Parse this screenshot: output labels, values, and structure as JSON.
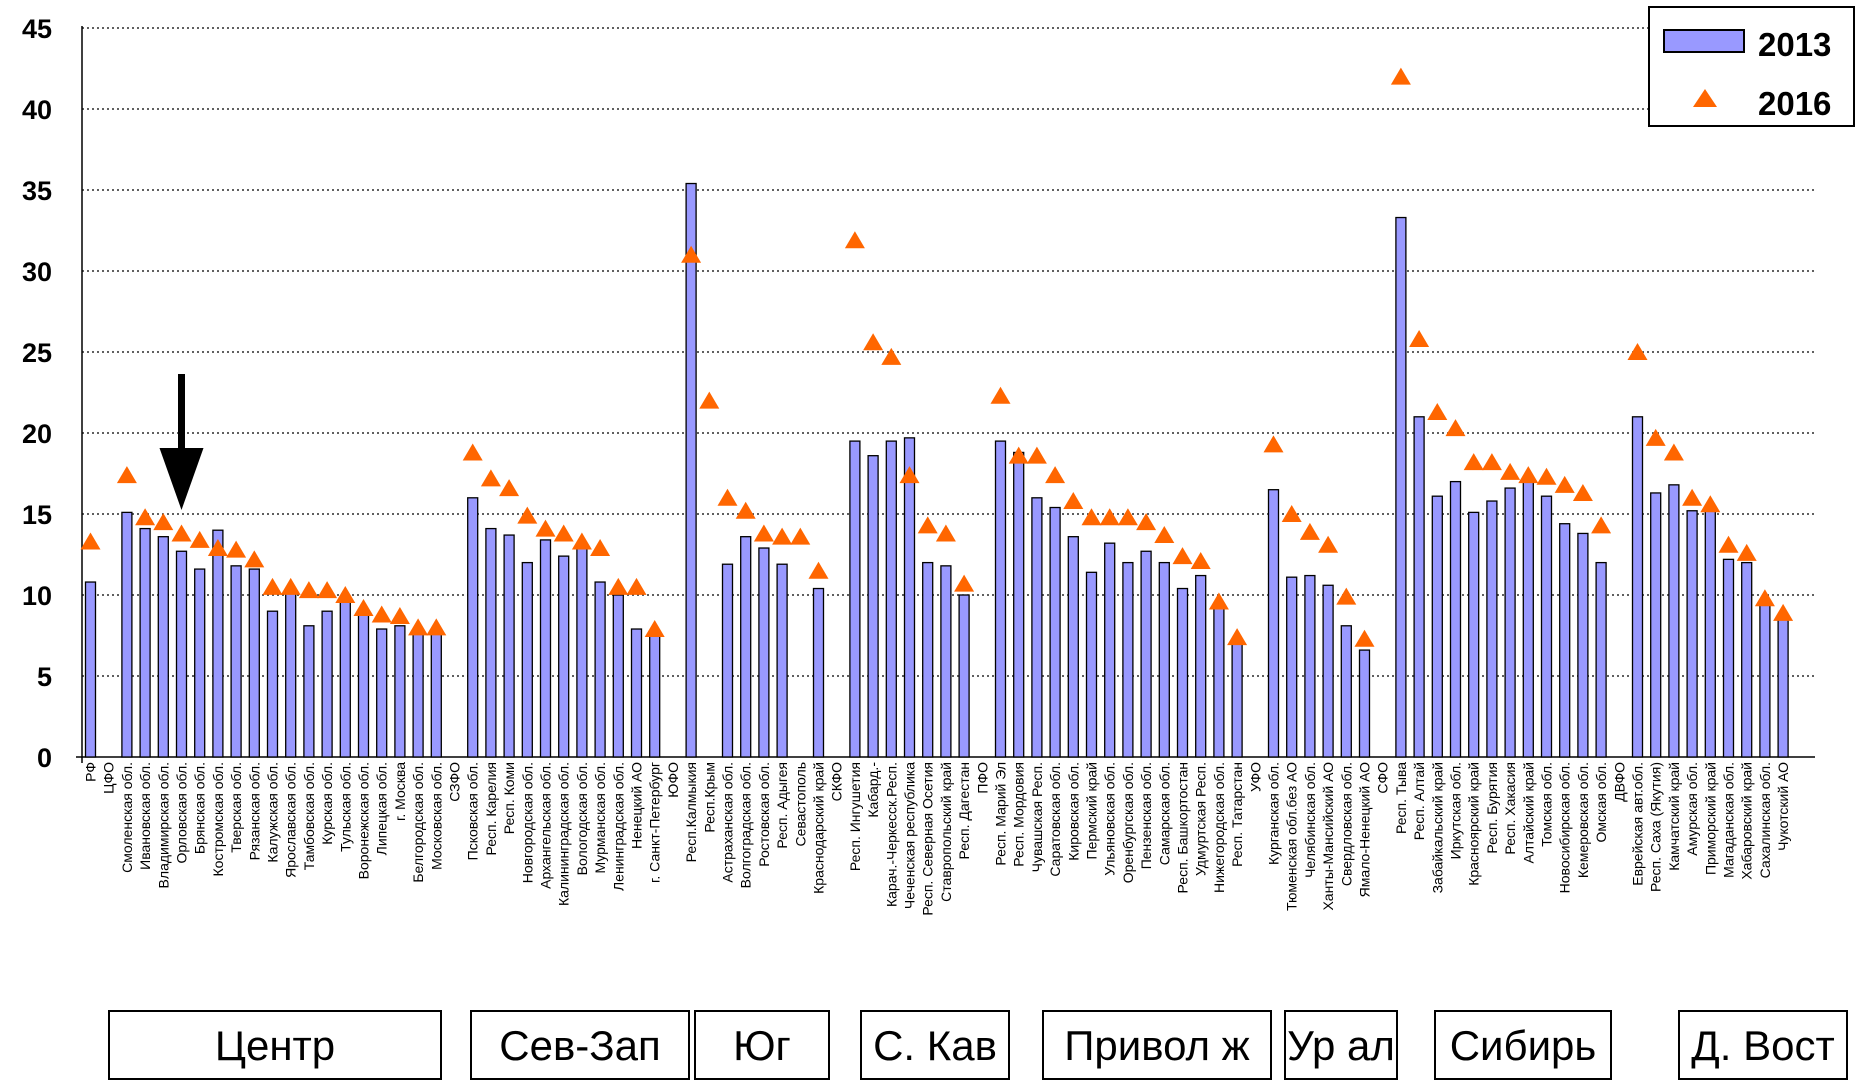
{
  "chart_data": {
    "type": "bar",
    "ylim": [
      0,
      45
    ],
    "yticks": [
      0,
      5,
      10,
      15,
      20,
      25,
      30,
      35,
      40,
      45
    ],
    "grid": "horizontal-dotted",
    "legend_position": "top-right",
    "series": [
      {
        "name": "2013",
        "type": "bar",
        "color": "#9999ff"
      },
      {
        "name": "2016",
        "type": "triangle-marker",
        "color": "#ff6600"
      }
    ],
    "categories": [
      "РФ",
      "ЦФО",
      "Смоленская обл.",
      "Ивановская обл.",
      "Владимирская обл.",
      "Орловская обл.",
      "Брянская обл.",
      "Костромская обл.",
      "Тверская обл.",
      "Рязанская обл.",
      "Калужская обл.",
      "Ярославская обл.",
      "Тамбовская обл.",
      "Курская обл.",
      "Тульская обл.",
      "Воронежская обл.",
      "Липецкая обл.",
      "г. Москва",
      "Белгородская обл.",
      "Московская обл.",
      "СЗФО",
      "Псковская обл.",
      "Респ. Карелия",
      "Респ. Коми",
      "Новгородская обл.",
      "Архангельская обл.",
      "Калининградская обл.",
      "Вологодская обл.",
      "Мурманская обл.",
      "Ленинградская обл.",
      "Ненецкий АО",
      "г. Санкт-Петербург",
      "ЮФО",
      "Респ.Калмыкия",
      "Респ.Крым",
      "Астраханская обл.",
      "Волгоградская обл.",
      "Ростовская обл.",
      "Респ. Адыгея",
      "Севастополь",
      "Краснодарский край",
      "СКФО",
      "Респ. Ингушетия",
      "Кабард.-",
      "Карач.-Черкесск.Респ.",
      "Чеченская республика",
      "Респ. Северная Осетия",
      "Ставропольский край",
      "Респ. Дагестан",
      "ПФО",
      "Респ. Марий Эл",
      "Респ. Мордовия",
      "Чувашская Респ.",
      "Саратовская обл.",
      "Кировская обл.",
      "Пермский край",
      "Ульяновская обл.",
      "Оренбургская обл.",
      "Пензенская обл.",
      "Самарская обл.",
      "Респ. Башкортостан",
      "Удмуртская Респ.",
      "Нижегородская обл.",
      "Респ. Татарстан",
      "УФО",
      "Курганская обл.",
      "Тюменская обл.без АО",
      "Челябинская обл.",
      "Ханты-Мансийский АО",
      "Свердловская обл.",
      "Ямало-Ненецкий АО",
      "СФО",
      "Респ. Тыва",
      "Респ. Алтай",
      "Забайкальский край",
      "Иркутская обл.",
      "Красноярский край",
      "Респ. Бурятия",
      "Респ. Хакасия",
      "Алтайский край",
      "Томская обл.",
      "Новосибирская обл.",
      "Кемеровская обл.",
      "Омская обл.",
      "ДВФО",
      "Еврейская авт.обл.",
      "Респ. Саха (Якутия)",
      "Камчатский край",
      "Амурская обл.",
      "Приморский край",
      "Магаданская обл.",
      "Хабаровский край",
      "Сахалинская обл.",
      "Чукотский АО"
    ],
    "values_2013": [
      10.8,
      null,
      15.1,
      14.1,
      13.6,
      12.7,
      11.6,
      14.0,
      11.8,
      11.6,
      9.0,
      10.3,
      8.1,
      9.0,
      9.8,
      9.0,
      7.9,
      8.1,
      7.6,
      7.6,
      null,
      16.0,
      14.1,
      13.7,
      12.0,
      13.4,
      12.4,
      12.9,
      10.8,
      10.0,
      7.9,
      7.6,
      null,
      35.4,
      null,
      11.9,
      13.6,
      12.9,
      11.9,
      null,
      10.4,
      null,
      19.5,
      18.6,
      19.5,
      19.7,
      12.0,
      11.8,
      10.0,
      null,
      19.5,
      18.8,
      16.0,
      15.4,
      13.6,
      11.4,
      13.2,
      12.0,
      12.7,
      12.0,
      10.4,
      11.2,
      9.2,
      7.0,
      null,
      16.5,
      11.1,
      11.2,
      10.6,
      8.1,
      6.6,
      null,
      33.3,
      21.0,
      16.1,
      17.0,
      15.1,
      15.8,
      16.6,
      17.3,
      16.1,
      14.4,
      13.8,
      12.0,
      null,
      21.0,
      16.3,
      16.8,
      15.2,
      15.5,
      12.2,
      12.0,
      9.7,
      8.5
    ],
    "values_2016": [
      13.3,
      null,
      17.4,
      14.8,
      14.5,
      13.8,
      13.4,
      12.9,
      12.8,
      12.2,
      10.5,
      10.5,
      10.3,
      10.3,
      10.0,
      9.2,
      8.8,
      8.7,
      8.0,
      8.0,
      null,
      18.8,
      17.2,
      16.6,
      14.9,
      14.1,
      13.8,
      13.3,
      12.9,
      10.5,
      10.5,
      7.9,
      null,
      31.0,
      22.0,
      16.0,
      15.2,
      13.8,
      13.6,
      13.6,
      11.5,
      null,
      31.9,
      25.6,
      24.7,
      17.4,
      14.3,
      13.8,
      10.7,
      null,
      22.3,
      18.6,
      18.6,
      17.4,
      15.8,
      14.8,
      14.8,
      14.8,
      14.5,
      13.7,
      12.4,
      12.1,
      9.6,
      7.4,
      null,
      19.3,
      15.0,
      13.9,
      13.1,
      9.9,
      7.3,
      null,
      42.0,
      25.8,
      21.3,
      20.3,
      18.2,
      18.2,
      17.6,
      17.4,
      17.3,
      16.8,
      16.3,
      14.3,
      null,
      25.0,
      19.7,
      18.8,
      16.0,
      15.6,
      13.1,
      12.6,
      9.8,
      8.9
    ]
  },
  "arrow": {
    "target": "Орловская обл.",
    "color": "#000000"
  },
  "districts": [
    {
      "label": "Центр"
    },
    {
      "label": "Сев-Зап"
    },
    {
      "label": "Юг"
    },
    {
      "label": "С. Кав"
    },
    {
      "label": "Привол ж"
    },
    {
      "label": "Ур ал"
    },
    {
      "label": "Сибирь"
    },
    {
      "label": "Д. Вост"
    }
  ]
}
